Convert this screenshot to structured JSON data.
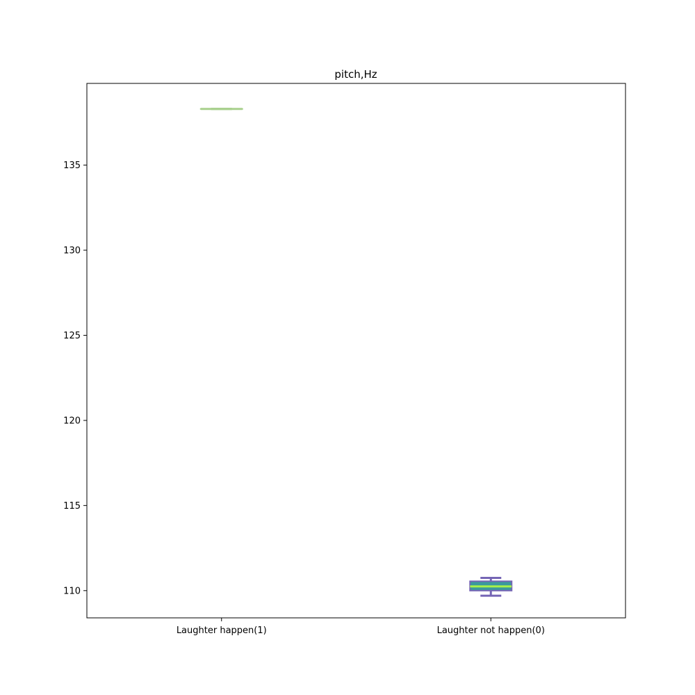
{
  "chart_data": {
    "type": "box",
    "title": "pitch,Hz",
    "xlabel": "",
    "ylabel": "",
    "categories": [
      "Laughter happen(1)",
      "Laughter not happen(0)"
    ],
    "ylim": [
      108.4,
      139.8
    ],
    "yticks": [
      110,
      115,
      120,
      125,
      130,
      135
    ],
    "grid": false,
    "boxes": [
      {
        "category": "Laughter happen(1)",
        "min": 138.3,
        "q1": 138.3,
        "median": 138.3,
        "q3": 138.3,
        "max": 138.3,
        "box_color": "#a8d08d",
        "median_color": "#a8d08d",
        "whisker_color": "#a8d08d"
      },
      {
        "category": "Laughter not happen(0)",
        "min": 109.7,
        "q1": 110.0,
        "median": 110.25,
        "q3": 110.55,
        "max": 110.75,
        "box_color": "#3b9a9c",
        "median_color": "#a8f04a",
        "whisker_color": "#7565b5"
      }
    ]
  }
}
